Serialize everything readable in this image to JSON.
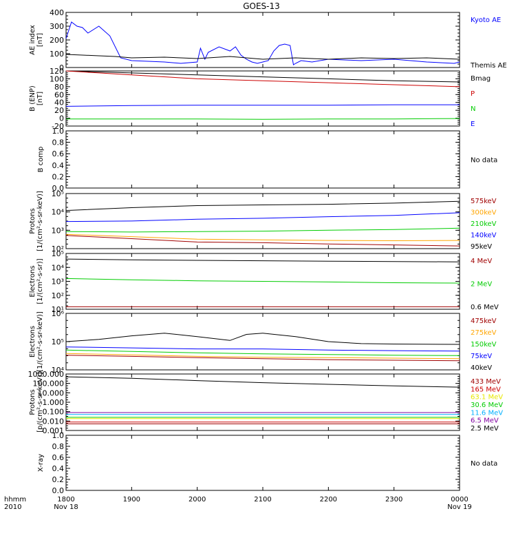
{
  "title": "GOES-13",
  "time_axis": {
    "row1_label": "hhmm",
    "row2_label": "2010",
    "ticks": [
      "1800",
      "1900",
      "2000",
      "2100",
      "2200",
      "2300",
      "0000"
    ],
    "start_date": "Nov 18",
    "end_date": "Nov 19"
  },
  "colors": {
    "black": "#000000",
    "blue": "#0000ff",
    "red": "#cc0000",
    "green": "#00cc00",
    "dark_red": "#a00000",
    "orange": "#ffa500",
    "yellow": "#e8e800",
    "cyan": "#00b0ff",
    "purple": "#8000a0"
  },
  "chart_data": [
    {
      "type": "line",
      "panel": "ae",
      "ylabel": [
        "AE index",
        "[nT]"
      ],
      "ylim": [
        0,
        400
      ],
      "yticks": [
        "0",
        "100",
        "200",
        "300",
        "400"
      ],
      "series": [
        {
          "name": "Kyoto AE",
          "color": "#0000ff",
          "x": [
            "18:00",
            "18:05",
            "18:10",
            "18:15",
            "18:20",
            "18:30",
            "18:40",
            "18:50",
            "19:00",
            "19:15",
            "19:30",
            "19:45",
            "20:00",
            "20:03",
            "20:07",
            "20:10",
            "20:20",
            "20:30",
            "20:35",
            "20:40",
            "20:45",
            "20:50",
            "20:55",
            "21:00",
            "21:05",
            "21:10",
            "21:15",
            "21:20",
            "21:25",
            "21:28",
            "21:30",
            "21:35",
            "21:45",
            "22:00",
            "22:30",
            "23:00",
            "23:30",
            "23:55",
            "24:00"
          ],
          "y": [
            210,
            330,
            300,
            290,
            250,
            300,
            230,
            70,
            50,
            45,
            40,
            30,
            40,
            140,
            60,
            110,
            150,
            120,
            150,
            90,
            60,
            40,
            30,
            40,
            50,
            120,
            160,
            170,
            160,
            20,
            30,
            50,
            40,
            60,
            50,
            60,
            40,
            30,
            40
          ]
        },
        {
          "name": "Themis AE",
          "color": "#000000",
          "x": [
            "18:00",
            "18:15",
            "18:30",
            "18:45",
            "19:00",
            "19:30",
            "20:00",
            "20:30",
            "21:00",
            "21:30",
            "22:00",
            "22:30",
            "23:00",
            "23:30",
            "24:00"
          ],
          "y": [
            95,
            90,
            85,
            80,
            70,
            75,
            65,
            80,
            60,
            70,
            60,
            70,
            65,
            70,
            60
          ]
        }
      ]
    },
    {
      "type": "line",
      "panel": "bfield",
      "ylabel": [
        "B (ENP)",
        "[nT]"
      ],
      "ylim": [
        -20,
        120
      ],
      "yticks": [
        "-20",
        "0",
        "20",
        "40",
        "60",
        "80",
        "100",
        "120"
      ],
      "series": [
        {
          "name": "Bmag",
          "color": "#000000",
          "x": [
            "18:00",
            "19:00",
            "20:00",
            "21:00",
            "22:00",
            "23:00",
            "24:00"
          ],
          "y": [
            125,
            115,
            110,
            105,
            100,
            95,
            92
          ]
        },
        {
          "name": "P",
          "color": "#cc0000",
          "x": [
            "18:00",
            "19:00",
            "20:00",
            "21:00",
            "22:00",
            "23:00",
            "24:00"
          ],
          "y": [
            122,
            110,
            100,
            95,
            90,
            85,
            80
          ]
        },
        {
          "name": "N",
          "color": "#00cc00",
          "x": [
            "18:00",
            "19:00",
            "20:00",
            "21:00",
            "22:00",
            "23:00",
            "24:00"
          ],
          "y": [
            -2,
            -2,
            -2,
            -3,
            -2,
            -2,
            -1
          ]
        },
        {
          "name": "E",
          "color": "#0000ff",
          "x": [
            "18:00",
            "19:00",
            "20:00",
            "21:00",
            "22:00",
            "23:00",
            "24:00"
          ],
          "y": [
            30,
            32,
            33,
            33,
            33,
            34,
            34
          ]
        }
      ]
    },
    {
      "type": "line",
      "panel": "bcomp",
      "ylabel": [
        "B comp"
      ],
      "ylim": [
        0,
        1
      ],
      "yticks": [
        "0.0",
        "0.2",
        "0.4",
        "0.6",
        "0.8",
        "1.0"
      ],
      "note": "No data",
      "series": []
    },
    {
      "type": "line",
      "panel": "protons",
      "ylabel": [
        "Protons",
        "[1/(cm²-s-sr-keV)]"
      ],
      "yscale": "log",
      "ylim": [
        100,
        100000
      ],
      "yticks": [
        "10²",
        "10³",
        "10⁴",
        "10⁵"
      ],
      "series": [
        {
          "name": "575keV",
          "color": "#a00000",
          "x": [
            "18:00",
            "19:00",
            "20:00",
            "21:00",
            "22:00",
            "23:00",
            "24:00"
          ],
          "y": [
            520,
            350,
            230,
            210,
            180,
            160,
            140
          ]
        },
        {
          "name": "300keV",
          "color": "#ffa500",
          "x": [
            "18:00",
            "19:00",
            "20:00",
            "21:00",
            "22:00",
            "23:00",
            "24:00"
          ],
          "y": [
            600,
            450,
            330,
            300,
            280,
            270,
            280
          ]
        },
        {
          "name": "210keV",
          "color": "#00cc00",
          "x": [
            "18:00",
            "19:00",
            "20:00",
            "21:00",
            "22:00",
            "23:00",
            "24:00"
          ],
          "y": [
            850,
            800,
            850,
            900,
            1000,
            1100,
            1300
          ]
        },
        {
          "name": "140keV",
          "color": "#0000ff",
          "x": [
            "18:00",
            "19:00",
            "20:00",
            "21:00",
            "22:00",
            "23:00",
            "24:00"
          ],
          "y": [
            3000,
            3200,
            4000,
            4500,
            5500,
            6500,
            9000
          ]
        },
        {
          "name": "95keV",
          "color": "#000000",
          "x": [
            "18:00",
            "19:00",
            "20:00",
            "21:00",
            "22:00",
            "23:00",
            "24:00"
          ],
          "y": [
            12000,
            17000,
            22000,
            24000,
            26000,
            30000,
            38000
          ]
        }
      ]
    },
    {
      "type": "line",
      "panel": "electrons_mev",
      "ylabel": [
        "Electrons",
        "[1/(cm²-s-sr)]"
      ],
      "yscale": "log",
      "ylim": [
        10,
        100000
      ],
      "yticks": [
        "10¹",
        "10²",
        "10³",
        "10⁴",
        "10⁵"
      ],
      "series": [
        {
          "name": "4 MeV",
          "color": "#a00000",
          "x": [
            "18:00",
            "19:00",
            "20:00",
            "21:00",
            "22:00",
            "23:00",
            "24:00"
          ],
          "y": [
            15,
            15,
            15,
            15,
            15,
            15,
            15
          ]
        },
        {
          "name": "2 MeV",
          "color": "#00cc00",
          "x": [
            "18:00",
            "19:00",
            "20:00",
            "21:00",
            "22:00",
            "23:00",
            "24:00"
          ],
          "y": [
            1600,
            1300,
            1100,
            1000,
            900,
            800,
            750
          ]
        },
        {
          "name": "0.6 MeV",
          "color": "#000000",
          "x": [
            "18:00",
            "19:00",
            "20:00",
            "21:00",
            "22:00",
            "23:00",
            "24:00"
          ],
          "y": [
            40000,
            35000,
            32000,
            30000,
            28000,
            26000,
            25000
          ]
        }
      ]
    },
    {
      "type": "line",
      "panel": "electrons_kev",
      "ylabel": [
        "Electrons",
        "[1/(cm²-s-sr-keV)]"
      ],
      "yscale": "log",
      "ylim": [
        10000,
        1000000
      ],
      "yticks": [
        "10⁴",
        "10⁵",
        "10⁶"
      ],
      "series": [
        {
          "name": "475keV",
          "color": "#a00000",
          "x": [
            "18:00",
            "19:00",
            "20:00",
            "21:00",
            "22:00",
            "23:00",
            "24:00"
          ],
          "y": [
            33000,
            30000,
            27000,
            25000,
            23000,
            22000,
            21000
          ]
        },
        {
          "name": "275keV",
          "color": "#ffa500",
          "x": [
            "18:00",
            "19:00",
            "20:00",
            "21:00",
            "22:00",
            "23:00",
            "24:00"
          ],
          "y": [
            38000,
            34000,
            30000,
            28000,
            27000,
            26000,
            25000
          ]
        },
        {
          "name": "150keV",
          "color": "#00cc00",
          "x": [
            "18:00",
            "19:00",
            "20:00",
            "21:00",
            "22:00",
            "23:00",
            "24:00"
          ],
          "y": [
            50000,
            45000,
            40000,
            37000,
            35000,
            33000,
            32000
          ]
        },
        {
          "name": "75keV",
          "color": "#0000ff",
          "x": [
            "18:00",
            "19:00",
            "20:00",
            "21:00",
            "22:00",
            "23:00",
            "24:00"
          ],
          "y": [
            65000,
            60000,
            55000,
            55000,
            50000,
            48000,
            46000
          ]
        },
        {
          "name": "40keV",
          "color": "#000000",
          "x": [
            "18:00",
            "18:30",
            "19:00",
            "19:30",
            "20:00",
            "20:30",
            "20:45",
            "21:00",
            "21:30",
            "22:00",
            "22:30",
            "23:00",
            "24:00"
          ],
          "y": [
            100000,
            120000,
            160000,
            200000,
            150000,
            110000,
            180000,
            200000,
            150000,
            100000,
            85000,
            82000,
            80000
          ]
        }
      ]
    },
    {
      "type": "line",
      "panel": "protons_mev",
      "ylabel": [
        "Protons",
        "[p/(cm²-s-sr-keV)]"
      ],
      "yscale": "log",
      "ylim": [
        0.001,
        1000
      ],
      "yticks": [
        "0.001",
        "0.010",
        "0.100",
        "1.000",
        "10.000",
        "100.000",
        "1000.000"
      ],
      "series": [
        {
          "name": "433 MeV",
          "color": "#a00000",
          "x": [
            "18:00",
            "24:00"
          ],
          "y": [
            0.005,
            0.005
          ]
        },
        {
          "name": "165 MeV",
          "color": "#cc0000",
          "x": [
            "18:00",
            "24:00"
          ],
          "y": [
            0.008,
            0.008
          ]
        },
        {
          "name": "63.1 MeV",
          "color": "#e8e800",
          "x": [
            "18:00",
            "24:00"
          ],
          "y": [
            0.018,
            0.018
          ]
        },
        {
          "name": "30.6 MeV",
          "color": "#00cc00",
          "x": [
            "18:00",
            "24:00"
          ],
          "y": [
            0.025,
            0.025
          ]
        },
        {
          "name": "11.6 MeV",
          "color": "#00b0ff",
          "x": [
            "18:00",
            "24:00"
          ],
          "y": [
            0.05,
            0.05
          ]
        },
        {
          "name": "6.5 MeV",
          "color": "#8000a0",
          "x": [
            "18:00",
            "24:00"
          ],
          "y": [
            0.08,
            0.08
          ]
        },
        {
          "name": "2.5 MeV",
          "color": "#000000",
          "x": [
            "18:00",
            "19:00",
            "20:00",
            "21:00",
            "22:00",
            "23:00",
            "24:00"
          ],
          "y": [
            500,
            350,
            200,
            120,
            80,
            55,
            40
          ]
        }
      ]
    },
    {
      "type": "line",
      "panel": "xray",
      "ylabel": [
        "X-ray"
      ],
      "ylim": [
        0,
        1
      ],
      "yticks": [
        "0.0",
        "0.2",
        "0.4",
        "0.6",
        "0.8",
        "1.0"
      ],
      "note": "No data",
      "series": []
    }
  ]
}
